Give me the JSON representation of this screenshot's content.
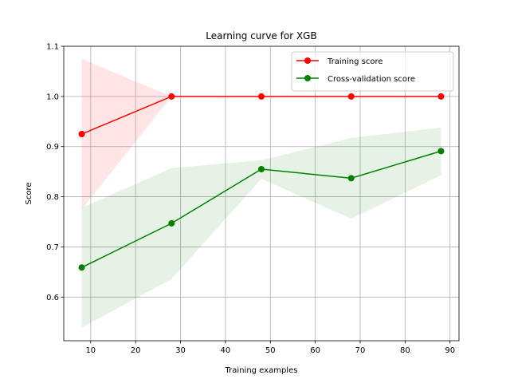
{
  "chart_data": {
    "type": "line",
    "title": "Learning curve for XGB",
    "xlabel": "Training examples",
    "ylabel": "Score",
    "xlim": [
      4.0,
      92.0
    ],
    "ylim": [
      0.513,
      1.1
    ],
    "x_ticks": [
      10,
      20,
      30,
      40,
      50,
      60,
      70,
      80,
      90
    ],
    "y_ticks": [
      0.6,
      0.7,
      0.8,
      0.9,
      1.0,
      1.1
    ],
    "grid": true,
    "legend_position": "upper right",
    "x": [
      8,
      28,
      48,
      68,
      88
    ],
    "series": [
      {
        "name": "Training score",
        "color": "#ff0000",
        "fill_color": "#ff0000",
        "marker": "circle",
        "values": [
          0.925,
          1.0,
          1.0,
          1.0,
          1.0
        ],
        "band_lower": [
          0.775,
          1.0,
          1.0,
          1.0,
          1.0
        ],
        "band_upper": [
          1.075,
          1.0,
          1.0,
          1.0,
          1.0
        ]
      },
      {
        "name": "Cross-validation score",
        "color": "#008000",
        "fill_color": "#008000",
        "marker": "circle",
        "values": [
          0.659,
          0.747,
          0.855,
          0.837,
          0.891
        ],
        "band_lower": [
          0.539,
          0.636,
          0.836,
          0.756,
          0.843
        ],
        "band_upper": [
          0.778,
          0.857,
          0.873,
          0.917,
          0.938
        ]
      }
    ]
  }
}
